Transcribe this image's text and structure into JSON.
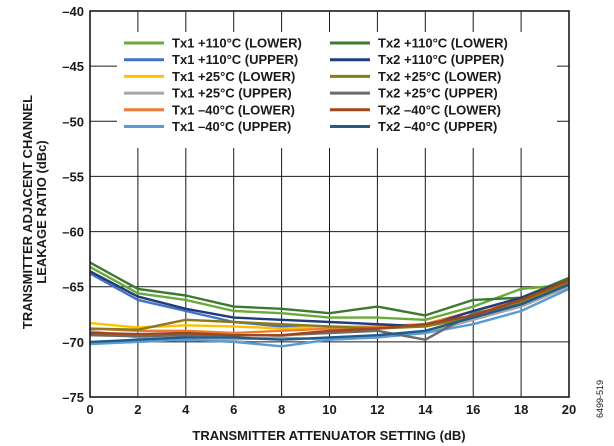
{
  "chart_data": {
    "type": "line",
    "xlabel": "TRANSMITTER ATTENUATOR SETTING (dB)",
    "ylabel_lines": [
      "TRANSMITTER ADJACENT CHANNEL",
      "LEAKAGE RATIO (dBc)"
    ],
    "xlim": [
      0,
      20
    ],
    "ylim": [
      -75,
      -40
    ],
    "x_ticks": [
      0,
      2,
      4,
      6,
      8,
      10,
      12,
      14,
      16,
      18,
      20
    ],
    "y_ticks": [
      -40,
      -45,
      -50,
      -55,
      -60,
      -65,
      -70,
      -75
    ],
    "x_tick_labels": [
      "0",
      "2",
      "4",
      "6",
      "8",
      "10",
      "12",
      "14",
      "16",
      "18",
      "20"
    ],
    "y_tick_labels": [
      "–40",
      "–45",
      "–50",
      "–55",
      "–60",
      "–65",
      "–70",
      "–75"
    ],
    "grid": true,
    "legend_position": "top",
    "figure_id": "6499-519",
    "x": [
      0,
      2,
      4,
      6,
      8,
      10,
      12,
      14,
      16,
      18,
      20
    ],
    "series": [
      {
        "name": "Tx1 +110°C (LOWER)",
        "color": "#6aaa3a",
        "values": [
          -63.2,
          -65.6,
          -66.2,
          -67.2,
          -67.4,
          -67.8,
          -67.8,
          -68.0,
          -66.8,
          -65.2,
          -64.8
        ]
      },
      {
        "name": "Tx1 +110°C (UPPER)",
        "color": "#4472c4",
        "values": [
          -63.8,
          -66.2,
          -67.2,
          -68.2,
          -68.6,
          -68.6,
          -68.8,
          -68.4,
          -67.8,
          -66.4,
          -64.6
        ]
      },
      {
        "name": "Tx1 +25°C (LOWER)",
        "color": "#ffc000",
        "values": [
          -68.3,
          -68.7,
          -68.5,
          -68.6,
          -68.8,
          -68.6,
          -68.6,
          -68.4,
          -67.6,
          -66.6,
          -64.9
        ]
      },
      {
        "name": "Tx1 +25°C (UPPER)",
        "color": "#a6a6a6",
        "values": [
          -69.0,
          -69.6,
          -69.6,
          -69.8,
          -69.6,
          -69.8,
          -69.6,
          -69.2,
          -68.0,
          -66.8,
          -65.0
        ]
      },
      {
        "name": "Tx1 –40°C (LOWER)",
        "color": "#ed7d31",
        "values": [
          -68.8,
          -69.0,
          -69.0,
          -69.2,
          -69.0,
          -68.8,
          -68.6,
          -68.4,
          -67.2,
          -66.2,
          -64.8
        ]
      },
      {
        "name": "Tx1 –40°C (UPPER)",
        "color": "#5b9bd5",
        "values": [
          -70.2,
          -70.0,
          -69.8,
          -70.0,
          -70.4,
          -69.8,
          -69.6,
          -69.2,
          -68.4,
          -67.2,
          -65.2
        ]
      },
      {
        "name": "Tx2 +110°C (LOWER)",
        "color": "#3d7a2e",
        "values": [
          -62.8,
          -65.2,
          -65.8,
          -66.8,
          -67.0,
          -67.4,
          -66.8,
          -67.6,
          -66.2,
          -66.0,
          -64.2
        ]
      },
      {
        "name": "Tx2 +110°C (UPPER)",
        "color": "#1f3d7a",
        "values": [
          -63.6,
          -65.9,
          -67.0,
          -67.8,
          -68.0,
          -68.2,
          -68.4,
          -68.6,
          -67.2,
          -66.0,
          -64.4
        ]
      },
      {
        "name": "Tx2 +25°C (LOWER)",
        "color": "#8a7a1a",
        "values": [
          -68.8,
          -68.9,
          -68.0,
          -68.2,
          -68.4,
          -68.6,
          -68.8,
          -68.6,
          -67.8,
          -66.4,
          -64.6
        ]
      },
      {
        "name": "Tx2 +25°C (UPPER)",
        "color": "#6b6b6b",
        "values": [
          -69.4,
          -69.5,
          -69.4,
          -69.4,
          -69.4,
          -69.2,
          -69.0,
          -69.8,
          -67.4,
          -66.6,
          -64.8
        ]
      },
      {
        "name": "Tx2 –40°C (LOWER)",
        "color": "#a0461c",
        "values": [
          -69.2,
          -69.3,
          -69.2,
          -69.4,
          -69.4,
          -69.0,
          -68.8,
          -68.4,
          -67.6,
          -66.2,
          -64.4
        ]
      },
      {
        "name": "Tx2 –40°C (UPPER)",
        "color": "#1f5c8a",
        "values": [
          -70.0,
          -69.8,
          -69.6,
          -69.6,
          -69.8,
          -69.6,
          -69.4,
          -69.0,
          -67.8,
          -66.6,
          -64.8
        ]
      }
    ]
  }
}
